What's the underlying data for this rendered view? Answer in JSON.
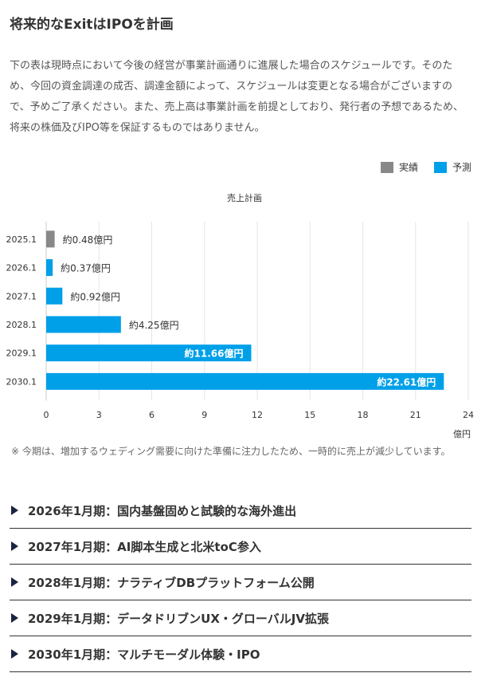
{
  "title": "将来的なExitはIPOを計画",
  "description": "下の表は現時点において今後の経営が事業計画通りに進展した場合のスケジュールです。そのため、今回の資金調達の成否、調達金額によって、スケジュールは変更となる場合がございますので、予めご了承ください。また、売上高は事業計画を前提としており、発行者の予想であるため、将来の株価及びIPO等を保証するものではありません。",
  "legend": {
    "actual": {
      "label": "実績",
      "color": "#888888"
    },
    "forecast": {
      "label": "予測",
      "color": "#00a0e9"
    }
  },
  "chart_data": {
    "type": "bar",
    "orientation": "horizontal",
    "title": "売上計画",
    "xlabel": "億円",
    "xlim": [
      0,
      24
    ],
    "xticks": [
      "0",
      "3",
      "6",
      "9",
      "12",
      "15",
      "18",
      "21",
      "24"
    ],
    "categories": [
      "2025.1",
      "2026.1",
      "2027.1",
      "2028.1",
      "2029.1",
      "2030.1"
    ],
    "values": [
      0.48,
      0.37,
      0.92,
      4.25,
      11.66,
      22.61
    ],
    "labels": [
      "約0.48億円",
      "約0.37億円",
      "約0.92億円",
      "約4.25億円",
      "約11.66億円",
      "約22.61億円"
    ],
    "kind": [
      "actual",
      "forecast",
      "forecast",
      "forecast",
      "forecast",
      "forecast"
    ],
    "grid": true
  },
  "note": "※ 今期は、増加するウェディング需要に向けた準備に注力したため、一時的に売上が減少しています。",
  "sections": [
    "2026年1月期：国内基盤固めと試験的な海外進出",
    "2027年1月期：AI脚本生成と北米toC参入",
    "2028年1月期：ナラティブDBプラットフォーム公開",
    "2029年1月期：データドリブンUX・グローバルJV拡張",
    "2030年1月期：マルチモーダル体験・IPO"
  ]
}
